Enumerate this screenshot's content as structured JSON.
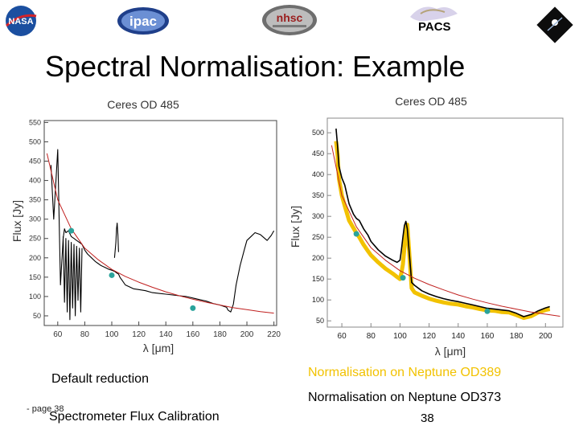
{
  "header": {
    "logos": [
      {
        "name": "nasa-logo",
        "text": "NASA",
        "color": "#1b4fa0"
      },
      {
        "name": "ipac-logo",
        "text": "ipac",
        "color": "#1f3f8a"
      },
      {
        "name": "nhsc-logo",
        "text": "nhsc",
        "color": "#9a1e1e"
      },
      {
        "name": "esa-herschel-logo",
        "text": ""
      }
    ],
    "pacs_label": "PACS"
  },
  "slide": {
    "title": "Spectral Normalisation: Example"
  },
  "captions": {
    "left": "Default reduction",
    "right_top": "Normalisation on Neptune OD389",
    "right_top_color": "#f2c200",
    "right_bottom": "Normalisation on Neptune OD373"
  },
  "footer": {
    "page_small": "- page 38",
    "title": "Spectrometer Flux Calibration",
    "page_number": "38"
  },
  "chart_data": [
    {
      "type": "line",
      "title": "Ceres OD 485",
      "xlabel": "λ [μm]",
      "ylabel": "Flux [Jy]",
      "xlim": [
        50,
        222
      ],
      "ylim": [
        25,
        555
      ],
      "xticks": [
        60,
        80,
        100,
        120,
        140,
        160,
        180,
        200,
        220
      ],
      "yticks": [
        50,
        100,
        150,
        200,
        250,
        300,
        350,
        400,
        450,
        500,
        550
      ],
      "grid": false,
      "series": [
        {
          "color": "#000000",
          "kind": "spectrum",
          "x": [
            55,
            57,
            60,
            62,
            64,
            65,
            66,
            68,
            70,
            72,
            74,
            76,
            78,
            80,
            82,
            85,
            88,
            90,
            92,
            95,
            98,
            100,
            102,
            104,
            105,
            106,
            108,
            110,
            113,
            116,
            120,
            125,
            130,
            135,
            140,
            145,
            150,
            155,
            160,
            165,
            170,
            175,
            180,
            185,
            186,
            188,
            190,
            192,
            195,
            198,
            200,
            203,
            206,
            210,
            215,
            218,
            220
          ],
          "y": [
            440,
            300,
            480,
            130,
            250,
            275,
            265,
            270,
            255,
            250,
            245,
            240,
            235,
            220,
            210,
            200,
            190,
            185,
            180,
            175,
            170,
            168,
            165,
            160,
            158,
            150,
            140,
            130,
            125,
            120,
            118,
            115,
            110,
            108,
            106,
            104,
            102,
            100,
            96,
            92,
            88,
            82,
            78,
            72,
            65,
            60,
            80,
            130,
            180,
            220,
            245,
            255,
            265,
            260,
            245,
            258,
            270
          ]
        },
        {
          "color": "#000000",
          "kind": "spectrum-segment",
          "x": [
            64,
            65,
            66,
            67,
            68,
            69,
            70,
            71,
            72,
            73,
            74,
            75,
            76,
            77,
            78
          ],
          "y": [
            255,
            85,
            250,
            60,
            245,
            40,
            240,
            70,
            235,
            50,
            230,
            90,
            225,
            60,
            225
          ]
        },
        {
          "color": "#000000",
          "kind": "spectrum-segment",
          "x": [
            102,
            103,
            103.5,
            104,
            104.5,
            105
          ],
          "y": [
            200,
            240,
            275,
            290,
            260,
            215
          ]
        },
        {
          "color": "#c0201f",
          "kind": "model",
          "x": [
            52,
            60,
            70,
            80,
            90,
            100,
            110,
            120,
            130,
            140,
            150,
            160,
            170,
            180,
            190,
            200,
            210,
            220
          ],
          "y": [
            470,
            350,
            275,
            225,
            195,
            170,
            152,
            137,
            124,
            112,
            102,
            93,
            85,
            78,
            71,
            66,
            61,
            57
          ]
        },
        {
          "color": "#2aa39b",
          "kind": "markers",
          "marker": "o",
          "x": [
            70,
            100,
            160
          ],
          "y": [
            270,
            155,
            70
          ]
        }
      ]
    },
    {
      "type": "line",
      "title": "Ceres OD 485",
      "xlabel": "λ [μm]",
      "ylabel": "Flux [Jy]",
      "xlim": [
        50,
        212
      ],
      "ylim": [
        35,
        535
      ],
      "xticks": [
        60,
        80,
        100,
        120,
        140,
        160,
        180,
        200
      ],
      "yticks": [
        50,
        100,
        150,
        200,
        250,
        300,
        350,
        400,
        450,
        500
      ],
      "grid": false,
      "series": [
        {
          "color": "#f2c200",
          "kind": "spectrum-normalised",
          "x": [
            56,
            57,
            58,
            60,
            62,
            65,
            68,
            70,
            72,
            75,
            78,
            80,
            85,
            90,
            95,
            98,
            100,
            101,
            102,
            103,
            104,
            105,
            108,
            110,
            115,
            120,
            125,
            130,
            135,
            140,
            145,
            150,
            155,
            160,
            165,
            170,
            175,
            180,
            185,
            190,
            195,
            200,
            203
          ],
          "y": [
            480,
            450,
            390,
            350,
            325,
            290,
            272,
            260,
            250,
            232,
            217,
            207,
            190,
            175,
            163,
            155,
            150,
            165,
            185,
            225,
            265,
            280,
            128,
            118,
            110,
            103,
            98,
            94,
            91,
            89,
            85,
            82,
            78,
            75,
            74,
            71,
            70,
            64,
            57,
            61,
            70,
            76,
            78
          ]
        },
        {
          "color": "#000000",
          "kind": "spectrum",
          "x": [
            56,
            57,
            58,
            60,
            62,
            65,
            68,
            70,
            72,
            75,
            78,
            80,
            85,
            90,
            95,
            98,
            100,
            101,
            102,
            103,
            104,
            105,
            108,
            110,
            115,
            120,
            125,
            130,
            135,
            140,
            145,
            150,
            155,
            160,
            165,
            170,
            175,
            180,
            185,
            190,
            195,
            200,
            203
          ],
          "y": [
            510,
            470,
            420,
            392,
            375,
            330,
            305,
            295,
            290,
            270,
            255,
            240,
            220,
            205,
            195,
            190,
            195,
            220,
            250,
            278,
            288,
            270,
            142,
            135,
            122,
            114,
            108,
            103,
            99,
            96,
            92,
            88,
            84,
            80,
            78,
            76,
            74,
            68,
            60,
            65,
            74,
            81,
            84
          ]
        },
        {
          "color": "#c0201f",
          "kind": "model",
          "x": [
            53,
            60,
            70,
            80,
            90,
            100,
            110,
            120,
            130,
            140,
            150,
            160,
            170,
            180,
            190,
            200,
            210
          ],
          "y": [
            470,
            350,
            275,
            225,
            195,
            170,
            152,
            137,
            124,
            112,
            102,
            93,
            85,
            78,
            71,
            66,
            61
          ]
        },
        {
          "color": "#2aa39b",
          "kind": "markers",
          "marker": "o",
          "x": [
            70,
            102,
            160
          ],
          "y": [
            258,
            153,
            73
          ]
        }
      ]
    }
  ]
}
